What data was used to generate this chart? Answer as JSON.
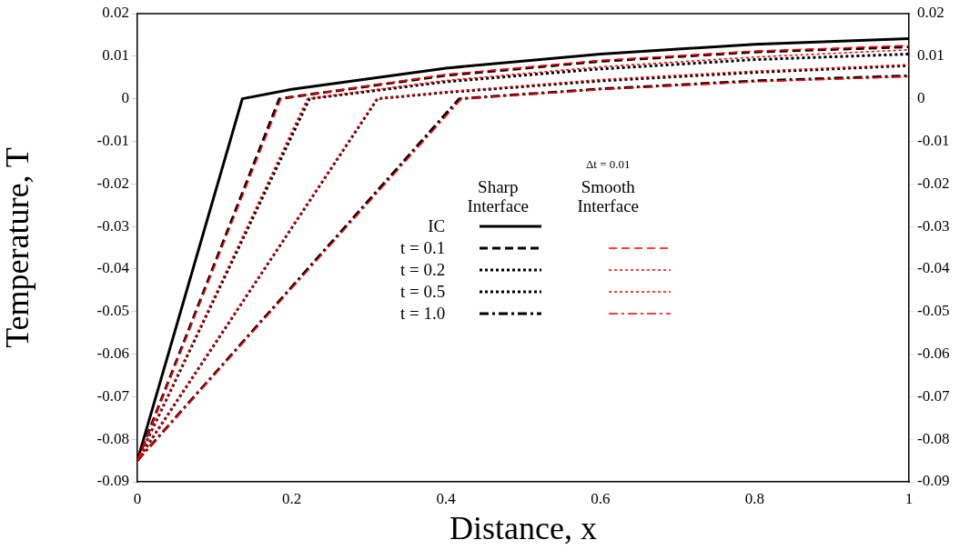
{
  "chart_data": {
    "type": "line",
    "xlabel": "Distance, x",
    "ylabel": "Temperature, T",
    "annotations": [
      "Sharp Interface",
      "Smooth Interface",
      "Δt = 0.01"
    ],
    "xlim": [
      0,
      1
    ],
    "xticks": [
      0,
      0.2,
      0.4,
      0.6,
      0.8,
      1
    ],
    "ylim": [
      -0.09,
      0.02
    ],
    "yticks": [
      -0.09,
      -0.08,
      -0.07,
      -0.06,
      -0.05,
      -0.04,
      -0.03,
      -0.02,
      -0.01,
      0,
      0.01,
      0.02
    ],
    "y2lim": [
      -0.09,
      0.02
    ],
    "y2ticks": [
      -0.09,
      -0.08,
      -0.07,
      -0.06,
      -0.05,
      -0.04,
      -0.03,
      -0.02,
      -0.01,
      0,
      0.01,
      0.02
    ],
    "grid": false,
    "legend": "center",
    "marker": "none",
    "series": [
      {
        "name": "IC",
        "color": "#000000",
        "line_style": "solid",
        "x": [
          0,
          0.136,
          0.2,
          0.4,
          0.6,
          0.8,
          1
        ],
        "values": [
          -0.085,
          0,
          0.0022,
          0.0072,
          0.0105,
          0.0128,
          0.0141
        ]
      },
      {
        "name": "t = 0.1",
        "color": "#000000",
        "line_style": "dashed",
        "x": [
          0,
          0.184,
          0.4,
          0.6,
          0.8,
          1
        ],
        "values": [
          -0.085,
          0,
          0.0055,
          0.0088,
          0.011,
          0.0122
        ]
      },
      {
        "name": "t = 0.2",
        "color": "#000000",
        "line_style": "dotted",
        "x": [
          0,
          0.223,
          0.4,
          0.6,
          0.8,
          1
        ],
        "values": [
          -0.085,
          0,
          0.004,
          0.007,
          0.0092,
          0.0105
        ]
      },
      {
        "name": "t = 0.5",
        "color": "#000000",
        "line_style": "dotted",
        "x": [
          0,
          0.311,
          0.4,
          0.6,
          0.8,
          1
        ],
        "values": [
          -0.085,
          0,
          0.0015,
          0.0042,
          0.0062,
          0.0078
        ]
      },
      {
        "name": "t = 1.0",
        "color": "#000000",
        "line_style": "dashdot",
        "x": [
          0,
          0.417,
          0.6,
          0.8,
          1
        ],
        "values": [
          -0.085,
          0,
          0.0023,
          0.0042,
          0.0054
        ]
      },
      {
        "color": "#ff0000",
        "line_style": "dashed",
        "x": [
          0,
          0.186,
          0.4,
          0.6,
          0.8,
          1
        ],
        "values": [
          -0.085,
          0,
          0.0057,
          0.009,
          0.0112,
          0.0125
        ]
      },
      {
        "color": "#ff0000",
        "line_style": "dotted",
        "x": [
          0,
          0.22,
          0.4,
          0.6,
          0.8,
          1
        ],
        "values": [
          -0.085,
          0,
          0.0043,
          0.0075,
          0.0098,
          0.0115
        ]
      },
      {
        "color": "#ff0000",
        "line_style": "dotted",
        "x": [
          0,
          0.31,
          0.4,
          0.6,
          0.8,
          1
        ],
        "values": [
          -0.085,
          0,
          0.0016,
          0.0045,
          0.0065,
          0.008
        ]
      },
      {
        "color": "#ff0000",
        "line_style": "dashdot",
        "x": [
          0,
          0.42,
          0.6,
          0.8,
          1
        ],
        "values": [
          -0.085,
          0,
          0.0022,
          0.004,
          0.0052
        ]
      }
    ]
  }
}
